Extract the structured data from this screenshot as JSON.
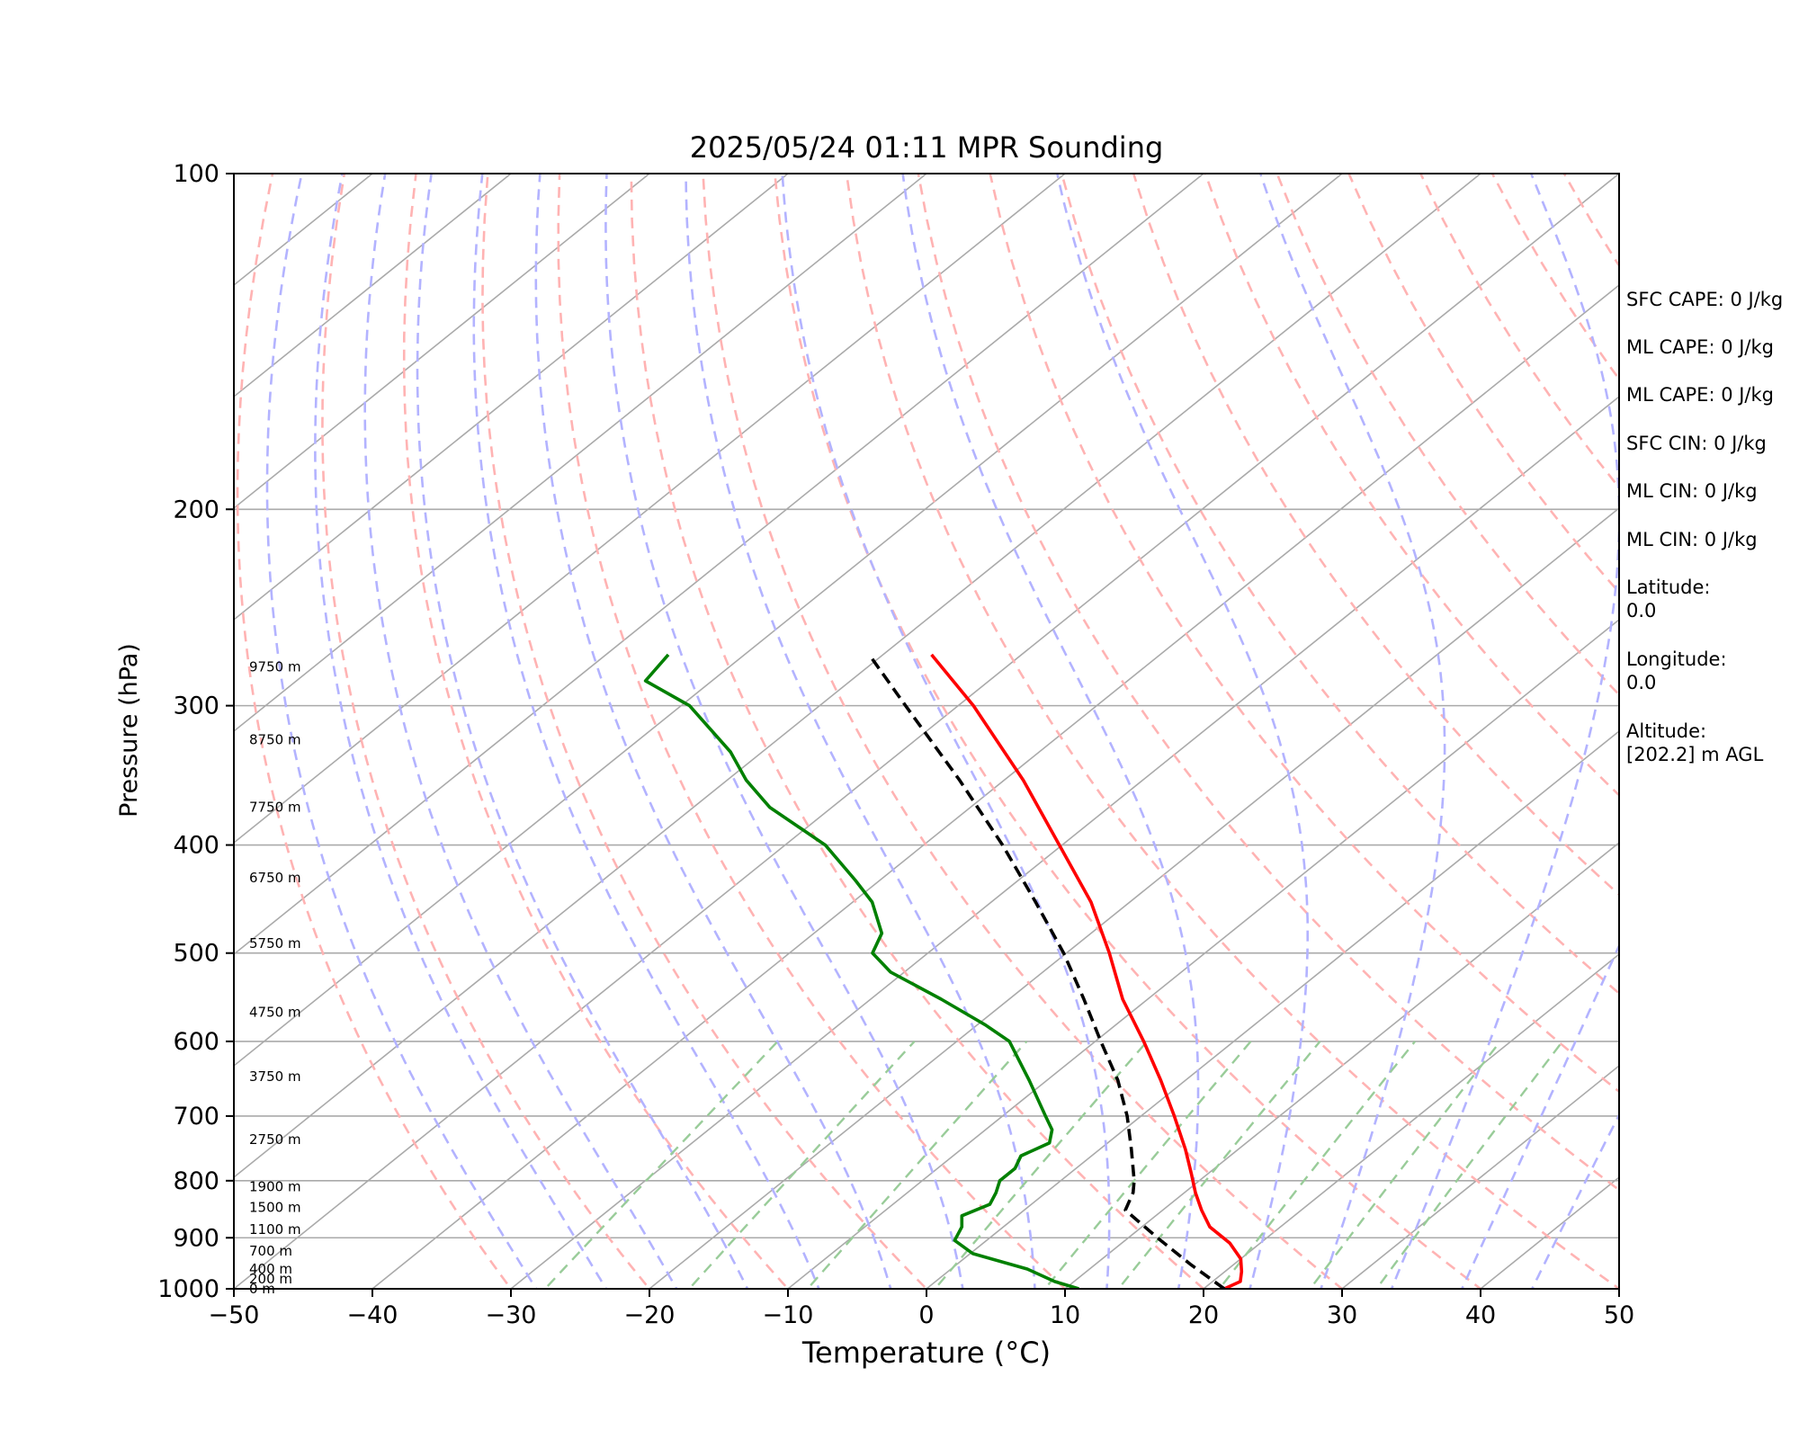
{
  "chart_data": {
    "type": "line",
    "title": "2025/05/24 01:11 MPR Sounding",
    "xlabel": "Temperature (°C)",
    "ylabel": "Pressure (hPa)",
    "xlim": [
      -50,
      50
    ],
    "ylim": [
      1000,
      100
    ],
    "y_scale": "log",
    "skew": true,
    "x_ticks": [
      "−50",
      "−40",
      "−30",
      "−20",
      "−10",
      "0",
      "10",
      "20",
      "30",
      "40",
      "50"
    ],
    "x_tick_values": [
      -50,
      -40,
      -30,
      -20,
      -10,
      0,
      10,
      20,
      30,
      40,
      50
    ],
    "y_ticks": [
      "100",
      "200",
      "300",
      "400",
      "500",
      "600",
      "700",
      "800",
      "900",
      "1000"
    ],
    "y_tick_values": [
      100,
      200,
      300,
      400,
      500,
      600,
      700,
      800,
      900,
      1000
    ],
    "grid": true,
    "series": [
      {
        "key": "temperature",
        "color": "#ff0000",
        "style": "solid",
        "p": [
          1000,
          985,
          965,
          940,
          910,
          880,
          850,
          820,
          790,
          750,
          700,
          650,
          600,
          550,
          500,
          450,
          400,
          350,
          300,
          270
        ],
        "t": [
          21.5,
          22.0,
          21.2,
          20.0,
          17.8,
          14.9,
          12.8,
          10.8,
          8.9,
          6.2,
          2.4,
          -1.8,
          -6.5,
          -11.8,
          -16.9,
          -22.8,
          -30.2,
          -38.6,
          -48.9,
          -56.5
        ]
      },
      {
        "key": "dewpoint",
        "color": "#008000",
        "style": "solid",
        "p": [
          1000,
          985,
          960,
          930,
          905,
          880,
          860,
          840,
          820,
          800,
          780,
          760,
          740,
          720,
          700,
          650,
          600,
          580,
          550,
          520,
          500,
          480,
          450,
          430,
          400,
          370,
          350,
          330,
          300,
          285,
          270
        ],
        "td": [
          11.0,
          8.6,
          5.5,
          0.2,
          -2.3,
          -3.0,
          -4.0,
          -3.0,
          -3.6,
          -4.4,
          -4.4,
          -5.1,
          -4.2,
          -5.2,
          -6.9,
          -11.3,
          -16.2,
          -19.4,
          -24.9,
          -31.0,
          -34.0,
          -35.1,
          -38.6,
          -41.8,
          -47.1,
          -54.5,
          -58.6,
          -62.3,
          -69.4,
          -74.8,
          -75.5
        ]
      },
      {
        "key": "parcel",
        "color": "#000000",
        "style": "dashed",
        "p": [
          1000,
          950,
          900,
          850,
          820,
          800,
          750,
          700,
          650,
          600,
          550,
          500,
          450,
          400,
          350,
          300,
          270
        ],
        "t": [
          21.5,
          16.8,
          12.1,
          7.3,
          6.3,
          5.3,
          2.3,
          -1.0,
          -4.9,
          -9.6,
          -14.6,
          -20.2,
          -26.8,
          -34.3,
          -43.2,
          -53.8,
          -61.0
        ]
      }
    ],
    "height_labels": [
      {
        "p": 1000,
        "text": "0 m"
      },
      {
        "p": 980,
        "text": "200 m"
      },
      {
        "p": 960,
        "text": "400 m"
      },
      {
        "p": 925,
        "text": "700 m"
      },
      {
        "p": 885,
        "text": "1100 m"
      },
      {
        "p": 845,
        "text": "1500 m"
      },
      {
        "p": 810,
        "text": "1900 m"
      },
      {
        "p": 735,
        "text": "2750 m"
      },
      {
        "p": 645,
        "text": "3750 m"
      },
      {
        "p": 565,
        "text": "4750 m"
      },
      {
        "p": 490,
        "text": "5750 m"
      },
      {
        "p": 428,
        "text": "6750 m"
      },
      {
        "p": 370,
        "text": "7750 m"
      },
      {
        "p": 322,
        "text": "8750 m"
      },
      {
        "p": 277,
        "text": "9750 m"
      }
    ],
    "background_lines": {
      "isotherms_color": "#aaaaaa",
      "dry_adiabats_color": "#ffb3b3",
      "moist_adiabats_color": "#b3b3ff",
      "mixing_ratio_color": "#99cc99"
    }
  },
  "side_panel": {
    "sfc_cape": "SFC CAPE: 0 J/kg",
    "ml_cape": "ML CAPE: 0 J/kg",
    "ml_cape_2": "ML CAPE: 0 J/kg",
    "sfc_cin": "SFC CIN: 0 J/kg",
    "ml_cin": "ML CIN: 0 J/kg",
    "ml_cin_2": "ML CIN: 0 J/kg",
    "latitude": "Latitude:\n0.0",
    "longitude": "Longitude:\n0.0",
    "altitude": "Altitude:\n[202.2] m AGL"
  }
}
